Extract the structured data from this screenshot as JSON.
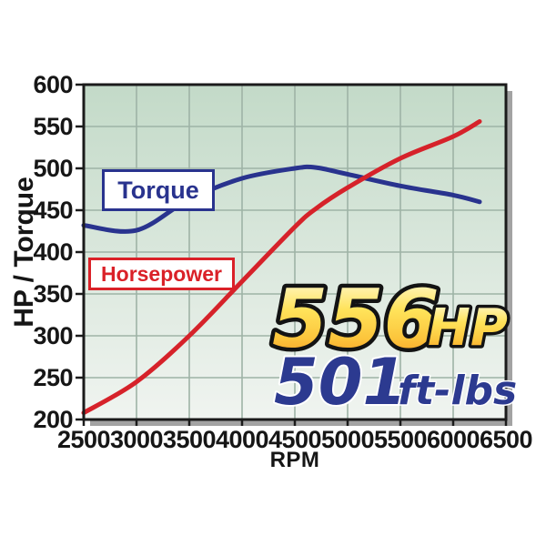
{
  "page": {
    "background": "#ffffff"
  },
  "chart_data": {
    "type": "line",
    "title": "",
    "xlabel": "RPM",
    "ylabel": "HP / Torque",
    "xlim": [
      2500,
      6500
    ],
    "ylim": [
      200,
      600
    ],
    "x_ticks": [
      2500,
      3000,
      3500,
      4000,
      4500,
      5000,
      5500,
      6000,
      6500
    ],
    "y_ticks": [
      600,
      550,
      500,
      450,
      400,
      350,
      300,
      250,
      200
    ],
    "grid": true,
    "legend_position": "on-chart-boxed-labels",
    "x": [
      2500,
      3000,
      3500,
      4000,
      4500,
      4700,
      5000,
      5500,
      6000,
      6250
    ],
    "series": [
      {
        "name": "Torque",
        "color": "#29338e",
        "values": [
          432,
          426,
          463,
          488,
          500,
          501,
          493,
          479,
          468,
          460
        ]
      },
      {
        "name": "Horsepower",
        "color": "#d6222a",
        "values": [
          208,
          245,
          300,
          365,
          430,
          452,
          477,
          512,
          538,
          556
        ]
      }
    ],
    "annotations": {
      "peak_hp_value": "556",
      "peak_hp_unit": "HP",
      "peak_torque_value": "501",
      "peak_torque_unit": "ft-lbs"
    }
  },
  "colors": {
    "plot_bg_top": "#c3dac8",
    "plot_bg_bottom": "#f0f4f0",
    "gridline": "#9eb3a6",
    "border": "#1b1b1b",
    "shadow": "#a3a3a3",
    "torque_line": "#29338e",
    "horsepower_line": "#d6222a",
    "gold_top": "#fffce4",
    "gold_mid": "#ffd84a",
    "gold_bottom": "#f6921e"
  }
}
